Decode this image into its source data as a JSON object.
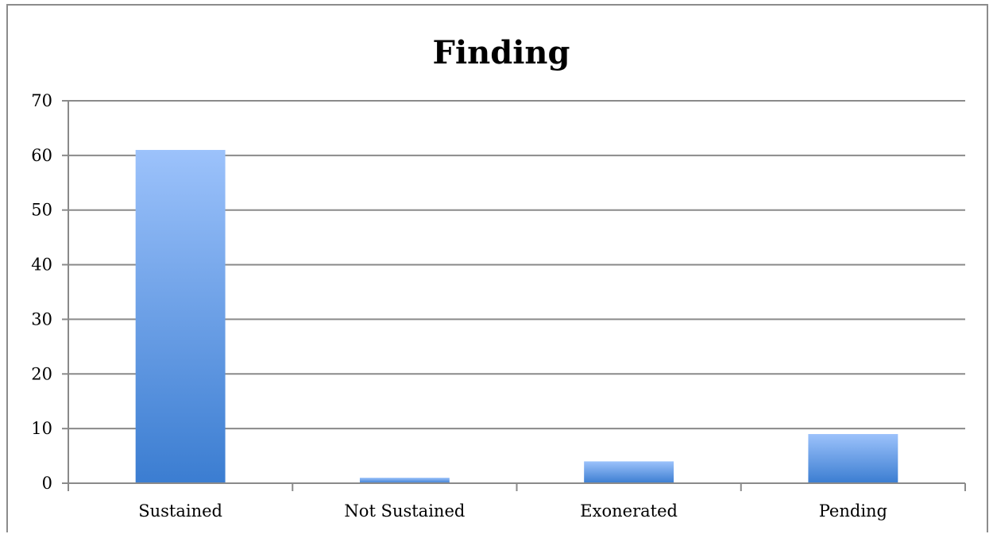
{
  "chart_data": {
    "type": "bar",
    "title": "Finding",
    "categories": [
      "Sustained",
      "Not Sustained",
      "Exonerated",
      "Pending"
    ],
    "values": [
      61,
      1,
      4,
      9
    ],
    "xlabel": "",
    "ylabel": "",
    "ylim": [
      0,
      70
    ],
    "yticks": [
      0,
      10,
      20,
      30,
      40,
      50,
      60,
      70
    ],
    "grid": true,
    "legend": "none",
    "colors": {
      "bar_top": "#9cc2fb",
      "bar_bottom": "#3b7dd1",
      "grid": "#8a8a8a",
      "axis": "#8a8a8a"
    }
  }
}
